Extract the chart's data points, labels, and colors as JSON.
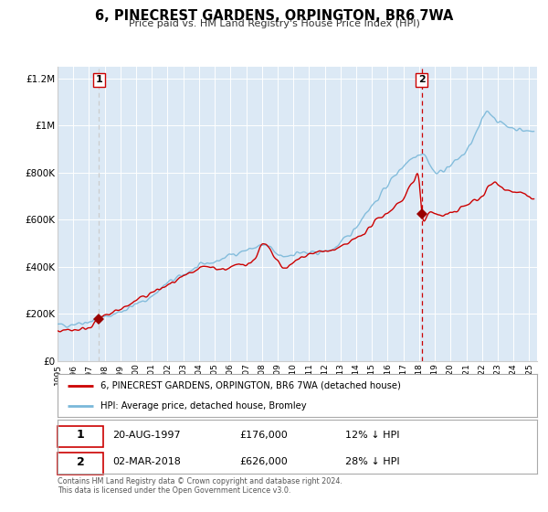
{
  "title": "6, PINECREST GARDENS, ORPINGTON, BR6 7WA",
  "subtitle": "Price paid vs. HM Land Registry's House Price Index (HPI)",
  "plot_bg_color": "#dce9f5",
  "hpi_color": "#7ab8d9",
  "price_color": "#cc0000",
  "marker_color": "#990000",
  "vline1_color": "#bbbbbb",
  "vline2_color": "#cc0000",
  "ylim": [
    0,
    1250000
  ],
  "xlim_start": 1995.0,
  "xlim_end": 2025.5,
  "yticks": [
    0,
    200000,
    400000,
    600000,
    800000,
    1000000,
    1200000
  ],
  "ytick_labels": [
    "£0",
    "£200K",
    "£400K",
    "£600K",
    "£800K",
    "£1M",
    "£1.2M"
  ],
  "xticks": [
    1995,
    1996,
    1997,
    1998,
    1999,
    2000,
    2001,
    2002,
    2003,
    2004,
    2005,
    2006,
    2007,
    2008,
    2009,
    2010,
    2011,
    2012,
    2013,
    2014,
    2015,
    2016,
    2017,
    2018,
    2019,
    2020,
    2021,
    2022,
    2023,
    2024,
    2025
  ],
  "point1_x": 1997.64,
  "point1_y": 176000,
  "point1_label": "1",
  "point1_date": "20-AUG-1997",
  "point1_price": "£176,000",
  "point1_hpi": "12% ↓ HPI",
  "point2_x": 2018.17,
  "point2_y": 626000,
  "point2_label": "2",
  "point2_date": "02-MAR-2018",
  "point2_price": "£626,000",
  "point2_hpi": "28% ↓ HPI",
  "legend_line1": "6, PINECREST GARDENS, ORPINGTON, BR6 7WA (detached house)",
  "legend_line2": "HPI: Average price, detached house, Bromley",
  "footer1": "Contains HM Land Registry data © Crown copyright and database right 2024.",
  "footer2": "This data is licensed under the Open Government Licence v3.0."
}
